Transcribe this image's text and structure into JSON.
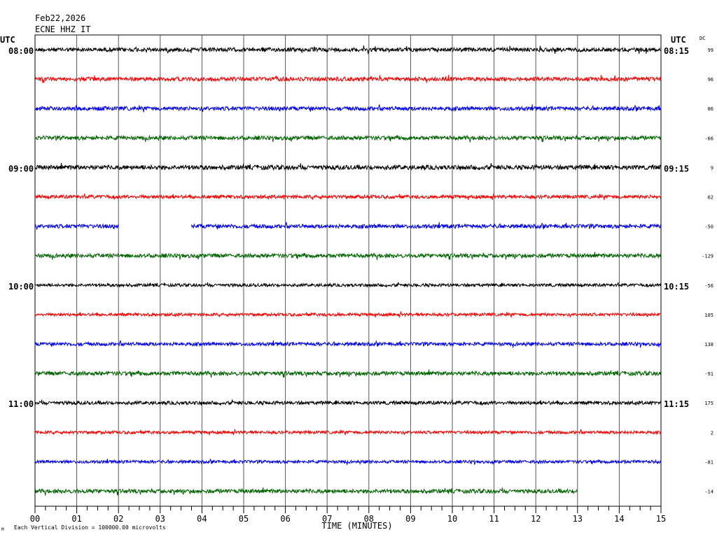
{
  "header": {
    "date": "Feb22,2026",
    "station": "ECNE HHZ IT"
  },
  "left_axis": {
    "label": "UTC"
  },
  "right_axis": {
    "label": "UTC",
    "dc_label": "DC"
  },
  "footer": {
    "scale_note": "Each Vertical Division = 100000.00 microvolts",
    "corner_mark": "M"
  },
  "chart_data": {
    "type": "line",
    "title": "ECNE HHZ IT",
    "date": "Feb22,2026",
    "xlabel": "TIME (MINUTES)",
    "xlim": [
      0,
      15
    ],
    "x_ticks": [
      "00",
      "01",
      "02",
      "03",
      "04",
      "05",
      "06",
      "07",
      "08",
      "09",
      "10",
      "11",
      "12",
      "13",
      "14",
      "15"
    ],
    "grid": true,
    "trace_minutes": 15,
    "rows_per_hour": 4,
    "colors": [
      "#000000",
      "#ff0000",
      "#0000ff",
      "#006400"
    ],
    "rows": [
      {
        "start": "08:00",
        "left_label": "08:00",
        "right_label": "08:15",
        "dc": "99",
        "color": "#000000",
        "amp": 0.8,
        "gaps": []
      },
      {
        "start": "08:15",
        "left_label": "",
        "right_label": "",
        "dc": "96",
        "color": "#ff0000",
        "amp": 0.8,
        "gaps": []
      },
      {
        "start": "08:30",
        "left_label": "",
        "right_label": "",
        "dc": "86",
        "color": "#0000ff",
        "amp": 0.8,
        "gaps": []
      },
      {
        "start": "08:45",
        "left_label": "",
        "right_label": "",
        "dc": "-66",
        "color": "#006400",
        "amp": 0.8,
        "gaps": []
      },
      {
        "start": "09:00",
        "left_label": "09:00",
        "right_label": "09:15",
        "dc": "9",
        "color": "#000000",
        "amp": 0.9,
        "gaps": []
      },
      {
        "start": "09:15",
        "left_label": "",
        "right_label": "",
        "dc": "62",
        "color": "#ff0000",
        "amp": 0.7,
        "gaps": []
      },
      {
        "start": "09:30",
        "left_label": "",
        "right_label": "",
        "dc": "-50",
        "color": "#0000ff",
        "amp": 0.8,
        "gaps": [
          [
            2.0,
            3.75
          ]
        ]
      },
      {
        "start": "09:45",
        "left_label": "",
        "right_label": "",
        "dc": "-129",
        "color": "#006400",
        "amp": 0.8,
        "gaps": []
      },
      {
        "start": "10:00",
        "left_label": "10:00",
        "right_label": "10:15",
        "dc": "-56",
        "color": "#000000",
        "amp": 0.6,
        "gaps": []
      },
      {
        "start": "10:15",
        "left_label": "",
        "right_label": "",
        "dc": "105",
        "color": "#ff0000",
        "amp": 0.6,
        "gaps": []
      },
      {
        "start": "10:30",
        "left_label": "",
        "right_label": "",
        "dc": "138",
        "color": "#0000ff",
        "amp": 0.7,
        "gaps": []
      },
      {
        "start": "10:45",
        "left_label": "",
        "right_label": "",
        "dc": "-91",
        "color": "#006400",
        "amp": 0.8,
        "gaps": []
      },
      {
        "start": "11:00",
        "left_label": "11:00",
        "right_label": "11:15",
        "dc": "175",
        "color": "#000000",
        "amp": 0.7,
        "gaps": []
      },
      {
        "start": "11:15",
        "left_label": "",
        "right_label": "",
        "dc": "2",
        "color": "#ff0000",
        "amp": 0.6,
        "gaps": []
      },
      {
        "start": "11:30",
        "left_label": "",
        "right_label": "",
        "dc": "-81",
        "color": "#0000ff",
        "amp": 0.6,
        "gaps": []
      },
      {
        "start": "11:45",
        "left_label": "",
        "right_label": "",
        "dc": "-14",
        "color": "#006400",
        "amp": 0.8,
        "gaps": [
          [
            13.0,
            15.0
          ]
        ]
      }
    ]
  }
}
